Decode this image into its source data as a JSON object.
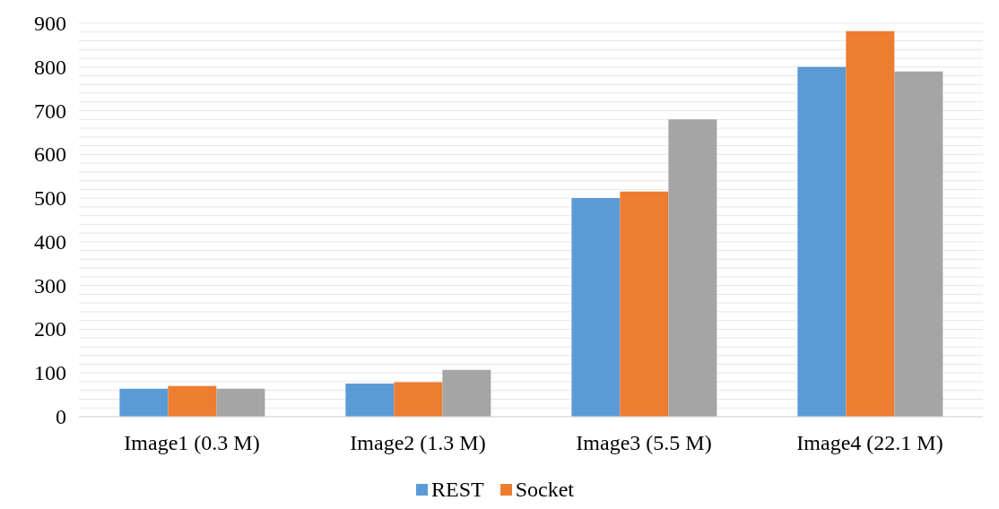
{
  "chart_data": {
    "type": "bar",
    "categories": [
      "Image1 (0.3 M)",
      "Image2 (1.3 M)",
      "Image3 (5.5 M)",
      "Image4 (22.1 M)"
    ],
    "series": [
      {
        "name": "REST",
        "color": "#5b9bd5",
        "values": [
          64,
          76,
          500,
          800
        ]
      },
      {
        "name": "Socket",
        "color": "#ed7d31",
        "values": [
          70,
          79,
          515,
          882
        ]
      },
      {
        "color": "#a5a5a5",
        "values": [
          64,
          107,
          680,
          790
        ]
      }
    ],
    "ylim": [
      0,
      900
    ],
    "yticks": [
      0,
      {
        "value": 20,
        "label": null
      },
      {
        "value": 40,
        "label": null
      },
      {
        "value": 60,
        "label": null
      },
      {
        "value": 80,
        "label": null
      },
      100,
      {
        "value": 120,
        "label": null
      },
      {
        "value": 140,
        "label": null
      },
      {
        "value": 160,
        "label": null
      },
      {
        "value": 180,
        "label": null
      },
      200,
      {
        "value": 220,
        "label": null
      },
      {
        "value": 240,
        "label": null
      },
      {
        "value": 260,
        "label": null
      },
      {
        "value": 280,
        "label": null
      },
      300,
      {
        "value": 320,
        "label": null
      },
      {
        "value": 340,
        "label": null
      },
      {
        "value": 360,
        "label": null
      },
      {
        "value": 380,
        "label": null
      },
      400,
      {
        "value": 420,
        "label": null
      },
      {
        "value": 440,
        "label": null
      },
      {
        "value": 460,
        "label": null
      },
      {
        "value": 480,
        "label": null
      },
      500,
      {
        "value": 520,
        "label": null
      },
      {
        "value": 540,
        "label": null
      },
      {
        "value": 560,
        "label": null
      },
      {
        "value": 580,
        "label": null
      },
      600,
      {
        "value": 620,
        "label": null
      },
      {
        "value": 640,
        "label": null
      },
      {
        "value": 660,
        "label": null
      },
      {
        "value": 680,
        "label": null
      },
      700,
      {
        "value": 720,
        "label": null
      },
      {
        "value": 740,
        "label": null
      },
      {
        "value": 760,
        "label": null
      },
      {
        "value": 780,
        "label": null
      },
      800,
      {
        "value": 820,
        "label": null
      },
      {
        "value": 840,
        "label": null
      },
      {
        "value": 860,
        "label": null
      },
      {
        "value": 880,
        "label": null
      },
      900
    ],
    "grid": "y",
    "legend": "bottom"
  }
}
